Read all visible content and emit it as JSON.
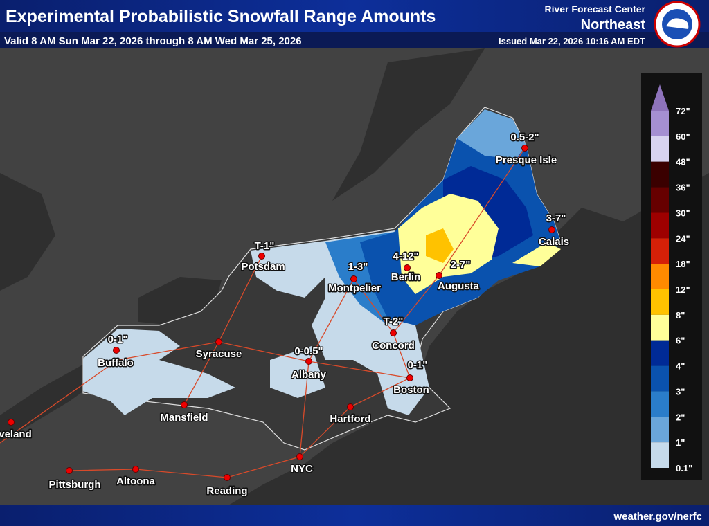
{
  "header": {
    "title": "Experimental Probabilistic Snowfall Range Amounts",
    "valid": "Valid 8 AM Sun Mar 22, 2026 through 8 AM Wed Mar 25, 2026",
    "office": "River Forecast Center",
    "region": "Northeast",
    "issued": "Issued Mar 22, 2026 10:16 AM EDT"
  },
  "legend": {
    "labels": [
      "72\"",
      "60\"",
      "48\"",
      "36\"",
      "30\"",
      "24\"",
      "18\"",
      "12\"",
      "8\"",
      "6\"",
      "4\"",
      "3\"",
      "2\"",
      "1\"",
      "0.1\""
    ],
    "colors": [
      "#a58fd2",
      "#d8d3f0",
      "#3a0000",
      "#660000",
      "#9e0000",
      "#d52008",
      "#ff8a00",
      "#ffc200",
      "#ffff99",
      "#002a96",
      "#0a52ae",
      "#2a7dca",
      "#6aa6da",
      "#c6daea"
    ],
    "top_color": "#8e73bb"
  },
  "cities": [
    "Potsdam",
    "Montpelier",
    "Berlin",
    "Augusta",
    "Calais",
    "Presque Isle",
    "Syracuse",
    "Buffalo",
    "Albany",
    "Concord",
    "Boston",
    "Hartford",
    "Mansfield",
    "NYC",
    "Pittsburgh",
    "Altoona",
    "Reading",
    "veland"
  ],
  "ranges": [
    "T-1\"",
    "1-3\"",
    "4-12\"",
    "2-7\"",
    "3-7\"",
    "0.5-2\"",
    "T-2\"",
    "0-1\"",
    "0-0.5\"",
    "0-1\""
  ],
  "footer": "weather.gov/nerfc"
}
